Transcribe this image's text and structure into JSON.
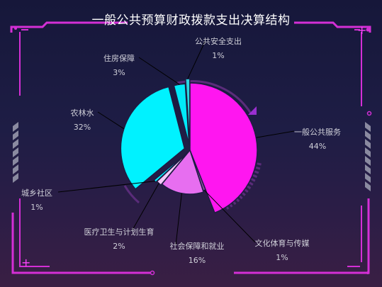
{
  "title": "一般公共预算财政拨款支出决算结构",
  "colors": {
    "frame_accent": "#d42fd6",
    "stripe": "#8a8aa0",
    "leader": "#000000",
    "label_text": "#cfcfd8",
    "pie_ring": "#5a2c7a"
  },
  "chart_data": {
    "type": "pie",
    "title": "一般公共预算财政拨款支出决算结构",
    "slices": [
      {
        "label": "一般公共服务",
        "pct_text": "44%",
        "value": 44,
        "color": "#ff16f0"
      },
      {
        "label": "文化体育与传媒",
        "pct_text": "1%",
        "value": 1,
        "color": "#8b4aa0"
      },
      {
        "label": "社会保障和就业",
        "pct_text": "16%",
        "value": 16,
        "color": "#e76ef0"
      },
      {
        "label": "医疗卫生与计划生育",
        "pct_text": "2%",
        "value": 2,
        "color": "#f5c8f8"
      },
      {
        "label": "城乡社区",
        "pct_text": "1%",
        "value": 1,
        "color": "#00f5ff"
      },
      {
        "label": "农林水",
        "pct_text": "32%",
        "value": 32,
        "color": "#00f2ff"
      },
      {
        "label": "住房保障",
        "pct_text": "3%",
        "value": 3,
        "color": "#00eaf8"
      },
      {
        "label": "公共安全支出",
        "pct_text": "1%",
        "value": 1,
        "color": "#2bd5df"
      }
    ]
  }
}
